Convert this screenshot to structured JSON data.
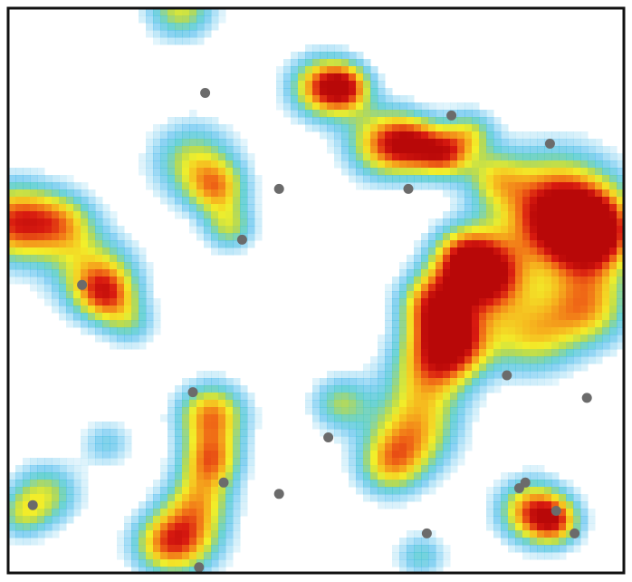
{
  "chart_data": {
    "type": "heatmap",
    "title": "",
    "xlabel": "",
    "ylabel": "",
    "xlim": [
      0,
      1
    ],
    "ylim": [
      0,
      1
    ],
    "colorscale": [
      "#ffffff",
      "#8fd6f2",
      "#3cb4ec",
      "#3fc6c8",
      "#a9d65a",
      "#f2ef2a",
      "#f6b51e",
      "#f06a16",
      "#d81a10",
      "#b80808"
    ],
    "grid": false,
    "legend": "none",
    "axes_visible": false,
    "frame_color": "#111111",
    "point_color": "#6b6b6b",
    "density_hotspots": [
      {
        "x": 0.01,
        "y": 0.62,
        "intensity": 0.85,
        "spread": 0.05
      },
      {
        "x": 0.09,
        "y": 0.62,
        "intensity": 0.5,
        "spread": 0.04
      },
      {
        "x": 0.14,
        "y": 0.53,
        "intensity": 0.55,
        "spread": 0.05
      },
      {
        "x": 0.16,
        "y": 0.49,
        "intensity": 0.55,
        "spread": 0.035
      },
      {
        "x": 0.3,
        "y": 0.73,
        "intensity": 0.5,
        "spread": 0.05
      },
      {
        "x": 0.34,
        "y": 0.68,
        "intensity": 0.55,
        "spread": 0.035
      },
      {
        "x": 0.36,
        "y": 0.61,
        "intensity": 0.45,
        "spread": 0.03
      },
      {
        "x": 0.51,
        "y": 0.86,
        "intensity": 0.75,
        "spread": 0.04
      },
      {
        "x": 0.55,
        "y": 0.86,
        "intensity": 0.6,
        "spread": 0.03
      },
      {
        "x": 0.61,
        "y": 0.76,
        "intensity": 0.7,
        "spread": 0.045
      },
      {
        "x": 0.66,
        "y": 0.76,
        "intensity": 0.6,
        "spread": 0.035
      },
      {
        "x": 0.71,
        "y": 0.74,
        "intensity": 0.65,
        "spread": 0.03
      },
      {
        "x": 0.75,
        "y": 0.78,
        "intensity": 0.45,
        "spread": 0.03
      },
      {
        "x": 0.79,
        "y": 0.7,
        "intensity": 0.4,
        "spread": 0.035
      },
      {
        "x": 0.89,
        "y": 0.64,
        "intensity": 1.0,
        "spread": 0.07
      },
      {
        "x": 0.95,
        "y": 0.6,
        "intensity": 0.9,
        "spread": 0.05
      },
      {
        "x": 0.94,
        "y": 0.47,
        "intensity": 0.65,
        "spread": 0.05
      },
      {
        "x": 0.85,
        "y": 0.42,
        "intensity": 0.55,
        "spread": 0.05
      },
      {
        "x": 0.78,
        "y": 0.52,
        "intensity": 0.85,
        "spread": 0.045
      },
      {
        "x": 0.74,
        "y": 0.56,
        "intensity": 0.7,
        "spread": 0.04
      },
      {
        "x": 0.72,
        "y": 0.41,
        "intensity": 0.95,
        "spread": 0.045
      },
      {
        "x": 0.69,
        "y": 0.48,
        "intensity": 0.7,
        "spread": 0.04
      },
      {
        "x": 0.68,
        "y": 0.35,
        "intensity": 0.5,
        "spread": 0.05
      },
      {
        "x": 0.66,
        "y": 0.25,
        "intensity": 0.6,
        "spread": 0.05
      },
      {
        "x": 0.62,
        "y": 0.19,
        "intensity": 0.55,
        "spread": 0.04
      },
      {
        "x": 0.54,
        "y": 0.3,
        "intensity": 0.45,
        "spread": 0.035
      },
      {
        "x": 0.33,
        "y": 0.28,
        "intensity": 0.75,
        "spread": 0.04
      },
      {
        "x": 0.33,
        "y": 0.2,
        "intensity": 0.65,
        "spread": 0.035
      },
      {
        "x": 0.31,
        "y": 0.13,
        "intensity": 0.5,
        "spread": 0.04
      },
      {
        "x": 0.29,
        "y": 0.06,
        "intensity": 0.55,
        "spread": 0.045
      },
      {
        "x": 0.25,
        "y": 0.05,
        "intensity": 0.45,
        "spread": 0.04
      },
      {
        "x": 0.06,
        "y": 0.14,
        "intensity": 0.5,
        "spread": 0.04
      },
      {
        "x": 0.02,
        "y": 0.1,
        "intensity": 0.35,
        "spread": 0.03
      },
      {
        "x": 0.85,
        "y": 0.11,
        "intensity": 0.75,
        "spread": 0.04
      },
      {
        "x": 0.89,
        "y": 0.09,
        "intensity": 0.6,
        "spread": 0.03
      },
      {
        "x": 0.67,
        "y": 0.03,
        "intensity": 0.35,
        "spread": 0.03
      },
      {
        "x": 0.16,
        "y": 0.23,
        "intensity": 0.3,
        "spread": 0.03
      },
      {
        "x": 0.28,
        "y": 1.0,
        "intensity": 0.55,
        "spread": 0.04
      },
      {
        "x": 0.2,
        "y": 0.44,
        "intensity": 0.3,
        "spread": 0.03
      }
    ],
    "points": [
      {
        "x": 0.32,
        "y": 0.85
      },
      {
        "x": 0.72,
        "y": 0.81
      },
      {
        "x": 0.88,
        "y": 0.76
      },
      {
        "x": 0.44,
        "y": 0.68
      },
      {
        "x": 0.65,
        "y": 0.68
      },
      {
        "x": 0.38,
        "y": 0.59
      },
      {
        "x": 0.12,
        "y": 0.51
      },
      {
        "x": 0.81,
        "y": 0.35
      },
      {
        "x": 0.3,
        "y": 0.32
      },
      {
        "x": 0.94,
        "y": 0.31
      },
      {
        "x": 0.52,
        "y": 0.24
      },
      {
        "x": 0.35,
        "y": 0.16
      },
      {
        "x": 0.44,
        "y": 0.14
      },
      {
        "x": 0.84,
        "y": 0.16
      },
      {
        "x": 0.04,
        "y": 0.12
      },
      {
        "x": 0.89,
        "y": 0.11
      },
      {
        "x": 0.83,
        "y": 0.15
      },
      {
        "x": 0.68,
        "y": 0.07
      },
      {
        "x": 0.92,
        "y": 0.07
      },
      {
        "x": 0.31,
        "y": 0.01
      }
    ]
  }
}
